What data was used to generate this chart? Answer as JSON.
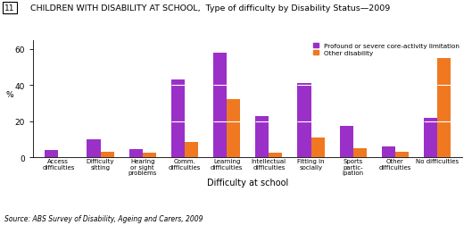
{
  "title": "CHILDREN WITH DISABILITY AT SCHOOL,  Type of difficulty by Disability Status—2009",
  "title_number": "11",
  "categories": [
    "Access\ndifficulties",
    "Difficulty\nsitting",
    "Hearing\nor sight\nproblems",
    "Comm.\ndifficulties",
    "Learning\ndifficulties",
    "Intellectual\ndifficulties",
    "Fitting in\nsocially",
    "Sports\npartic-\nipation",
    "Other\ndifficulties",
    "No difficulties"
  ],
  "profound_values": [
    4,
    10,
    4.5,
    43,
    58,
    23,
    41,
    17.5,
    6,
    22
  ],
  "other_values": [
    0,
    3,
    2.5,
    8.5,
    32,
    2.5,
    11,
    5,
    3,
    55
  ],
  "profound_color": "#9B30C8",
  "other_color": "#F07820",
  "ylabel": "%",
  "xlabel": "Difficulty at school",
  "ylim": [
    0,
    65
  ],
  "yticks": [
    0,
    20,
    40,
    60
  ],
  "legend_labels": [
    "Profound or severe core-activity limitation",
    "Other disability"
  ],
  "source": "Source: ABS Survey of Disability, Ageing and Carers, 2009",
  "bar_width": 0.32,
  "hline_color": "white",
  "hline_values": [
    20,
    40
  ]
}
